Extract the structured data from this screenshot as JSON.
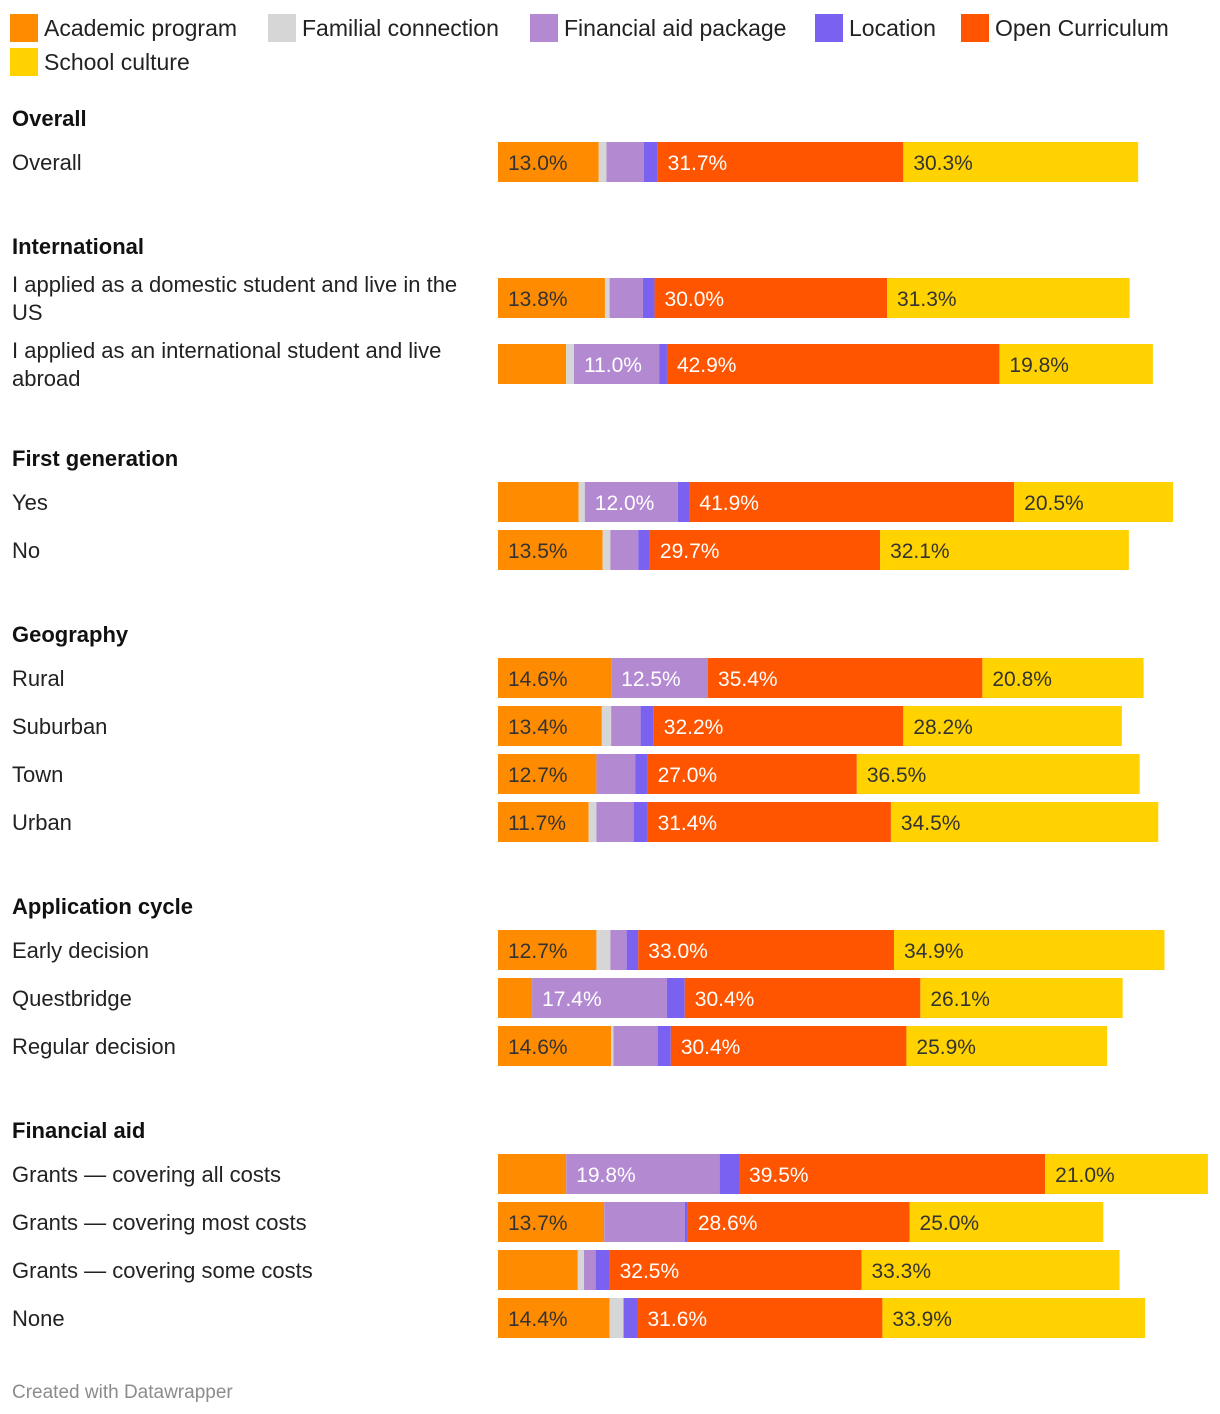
{
  "chart_data": {
    "type": "bar",
    "orientation": "horizontal",
    "stacked": true,
    "legend": [
      {
        "name": "Academic program",
        "color": "#ff8c00"
      },
      {
        "name": "Familial connection",
        "color": "#d6d6d6"
      },
      {
        "name": "Financial aid package",
        "color": "#b38ad1"
      },
      {
        "name": "Location",
        "color": "#7b61f0"
      },
      {
        "name": "Open Curriculum",
        "color": "#ff5500"
      },
      {
        "name": "School culture",
        "color": "#ffd200"
      }
    ],
    "groups": [
      {
        "title": "Overall",
        "rows": [
          {
            "label": "Overall",
            "values": [
              13.0,
              1.0,
              4.8,
              1.8,
              31.7,
              30.3
            ],
            "labels": [
              "13.0%",
              "",
              "",
              "",
              "31.7%",
              "30.3%"
            ]
          }
        ]
      },
      {
        "title": "International",
        "rows": [
          {
            "label": "I applied as a domestic student and live in the US",
            "values": [
              13.8,
              0.6,
              4.3,
              1.5,
              30.0,
              31.3
            ],
            "labels": [
              "13.8%",
              "",
              "",
              "",
              "30.0%",
              "31.3%"
            ]
          },
          {
            "label": "I applied as an international student and live abroad",
            "values": [
              8.8,
              1.0,
              11.0,
              1.0,
              42.9,
              19.8
            ],
            "labels": [
              "",
              "",
              "11.0%",
              "",
              "42.9%",
              "19.8%"
            ]
          }
        ]
      },
      {
        "title": "First generation",
        "rows": [
          {
            "label": "Yes",
            "values": [
              10.4,
              0.8,
              12.0,
              1.5,
              41.9,
              20.5
            ],
            "labels": [
              "",
              "",
              "12.0%",
              "",
              "41.9%",
              "20.5%"
            ]
          },
          {
            "label": "No",
            "values": [
              13.5,
              1.0,
              3.6,
              1.5,
              29.7,
              32.1
            ],
            "labels": [
              "13.5%",
              "",
              "",
              "",
              "29.7%",
              "32.1%"
            ]
          }
        ]
      },
      {
        "title": "Geography",
        "rows": [
          {
            "label": "Rural",
            "values": [
              14.6,
              0.0,
              12.5,
              0.0,
              35.4,
              20.8
            ],
            "labels": [
              "14.6%",
              "",
              "12.5%",
              "",
              "35.4%",
              "20.8%"
            ]
          },
          {
            "label": "Suburban",
            "values": [
              13.4,
              1.2,
              3.8,
              1.7,
              32.2,
              28.2
            ],
            "labels": [
              "13.4%",
              "",
              "",
              "",
              "32.2%",
              "28.2%"
            ]
          },
          {
            "label": "Town",
            "values": [
              12.7,
              0.0,
              5.0,
              1.6,
              27.0,
              36.5
            ],
            "labels": [
              "12.7%",
              "",
              "",
              "",
              "27.0%",
              "36.5%"
            ]
          },
          {
            "label": "Urban",
            "values": [
              11.7,
              1.0,
              4.8,
              1.8,
              31.4,
              34.5
            ],
            "labels": [
              "11.7%",
              "",
              "",
              "",
              "31.4%",
              "34.5%"
            ]
          }
        ]
      },
      {
        "title": "Application cycle",
        "rows": [
          {
            "label": "Early decision",
            "values": [
              12.7,
              1.8,
              2.1,
              1.5,
              33.0,
              34.9
            ],
            "labels": [
              "12.7%",
              "",
              "",
              "",
              "33.0%",
              "34.9%"
            ]
          },
          {
            "label": "Questbridge",
            "values": [
              4.4,
              0.0,
              17.4,
              2.3,
              30.4,
              26.1
            ],
            "labels": [
              "",
              "",
              "17.4%",
              "",
              "30.4%",
              "26.1%"
            ]
          },
          {
            "label": "Regular decision",
            "values": [
              14.6,
              0.3,
              5.7,
              1.7,
              30.4,
              25.9
            ],
            "labels": [
              "14.6%",
              "",
              "",
              "",
              "30.4%",
              "25.9%"
            ]
          }
        ]
      },
      {
        "title": "Financial aid",
        "rows": [
          {
            "label": "Grants — covering all costs",
            "values": [
              8.8,
              0.0,
              19.8,
              2.5,
              39.5,
              21.0
            ],
            "labels": [
              "",
              "",
              "19.8%",
              "",
              "39.5%",
              "21.0%"
            ]
          },
          {
            "label": "Grants — covering most costs",
            "values": [
              13.7,
              0.0,
              10.4,
              0.4,
              28.6,
              25.0
            ],
            "labels": [
              "13.7%",
              "",
              "",
              "",
              "28.6%",
              "25.0%"
            ]
          },
          {
            "label": "Grants — covering some costs",
            "values": [
              10.3,
              0.8,
              1.5,
              1.8,
              32.5,
              33.3
            ],
            "labels": [
              "",
              "",
              "",
              "",
              "32.5%",
              "33.3%"
            ]
          },
          {
            "label": "None",
            "values": [
              14.4,
              1.8,
              0.0,
              1.8,
              31.6,
              33.9
            ],
            "labels": [
              "14.4%",
              "",
              "",
              "",
              "31.6%",
              "33.9%"
            ]
          }
        ]
      }
    ],
    "label_colors": [
      "#333333",
      "#333333",
      "#ffffff",
      "#ffffff",
      "#ffffff",
      "#333333"
    ]
  },
  "footer": "Created with Datawrapper"
}
